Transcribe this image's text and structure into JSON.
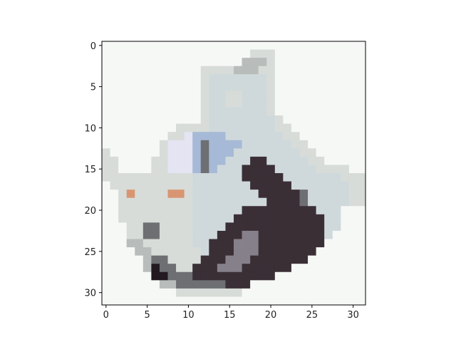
{
  "chart_data": {
    "type": "heatmap",
    "title": "",
    "xlabel": "",
    "ylabel": "",
    "grid": false,
    "image_size": [
      32,
      32
    ],
    "xlim": [
      -0.5,
      31.5
    ],
    "ylim": [
      31.5,
      -0.5
    ],
    "x_ticks": [
      0,
      5,
      10,
      15,
      20,
      25,
      30
    ],
    "y_ticks": [
      0,
      5,
      10,
      15,
      20,
      25,
      30
    ],
    "x_tick_labels": [
      "0",
      "5",
      "10",
      "15",
      "20",
      "25",
      "30"
    ],
    "y_tick_labels": [
      "0",
      "5",
      "10",
      "15",
      "20",
      "25",
      "30"
    ],
    "palette": {
      "W": "#f6f8f6",
      "L": "#d7dcd8",
      "M": "#b8bcba",
      "S": "#cfd9dc",
      "B": "#a6b9d6",
      "P": "#e4e4f2",
      "G": "#6d6f73",
      "D": "#3b2f36",
      "K": "#221a20",
      "O": "#d99572",
      "R": "#86808b"
    },
    "rows": [
      "WWWWWWWWWWWWWWWWWWWWWWWWWWWWWWWW",
      "WWWWWWWWWWWWWWWWWWLLLWWWWWWWWWWW",
      "WWWWWWWWWWWWWWWWWMMMLWWWWWWWWWWW",
      "WWWWWWWWWWWWLLLLMMMLLWWWWWWWWWWW",
      "WWWWWWWWWWWWLSSSSSSSLWWWWWWWWWWW",
      "WWWWWWWWWWWWLSSSSSSSLWWWWWWWWWWW",
      "WWWWWWWWWWWWLSSLLSSSLWWWWWWWWWWW",
      "WWWWWWWWWWWWLSSLLSSSLWWWWWWWWWWW",
      "WWWWWWWWWWWWLSSSSSSSLWWWWWWWWWWW",
      "WWWWWWWWWWWWLSSSSSSSSLWWWWWWWWWW",
      "WWWWWWWWWLLLLSSSSSSSSLLWWWWWWWWW",
      "WWWWWWWWLLPBBBBSSSSSSSLLWWWWWWWW",
      "WWWWWWWLPPPBGBBBBSSSSSSLLWWWWWWW",
      "LWWWWWWLPPPBGBBBSSSSSSSSLLWWWWWW",
      "LLWWWWLLPPPBGBBSSSDDSSSSSLLWWWWW",
      "LLWWWWLLPPPBGBSSSDDDDSSSSSLLLLWW",
      "LLLLLLLLLLLSSSSSSDDDDDSSSSSSSLLL",
      "WLLLLLLLLLLSSSSSSSDDDDDSSSSSSSLL",
      "WWLOLLLLOOLSSSSSSSSDDDDDGSSSSSLL",
      "WWLLLLLLLLLSSSSSSSSSDDDDGSSSSSLL",
      "WWLLLLLLLLLSSSSSSDDDDDDDDDSSSWWW",
      "WWLLLLLLLLLSSSSSDDDDDDDDDDDSSWWW",
      "WWWLLGGLLLLSSSSDDDDDDDDDDDDSSWWW",
      "WWWLLGGLLLLSSSDDDRRDDDDDDDDSWWWW",
      "WWWMMLLLLLLSSDDDRRRDDDDDDDDWWWWW",
      "WWWWMMLLLLLLSDDDRRRDDDDDDDWWWWWW",
      "WWWWWMGGLLLLDDDRRRDDDDDDDWWWWWWW",
      "WWWWWMKGGLLDDDRRRDDDDDDWWWWWWWWW",
      "WWWWWWKKGGGDDDDDDDDDDWWWWWWWWWWW",
      "WWWWWWWMMGGGGGGDDDWWWWWWWWWWWWWW",
      "WWWWWWWWWLLLLLLLLWWWWWWWWWWWWWWW",
      "WWWWWWWWWWWWWWWWWWWWWWWWWWWWWWWW"
    ]
  }
}
